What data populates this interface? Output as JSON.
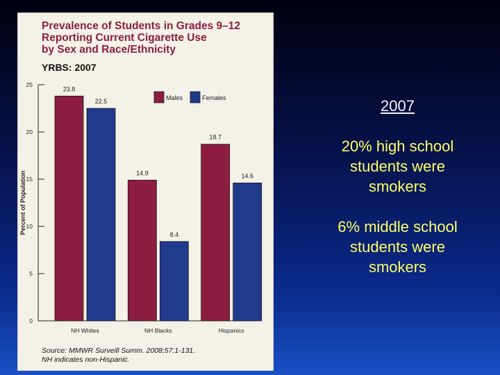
{
  "chart_data": {
    "type": "bar",
    "title_lines": [
      "Prevalence of Students in Grades 9–12",
      "Reporting Current Cigarette Use",
      "by Sex and Race/Ethnicity"
    ],
    "subtitle": "YRBS: 2007",
    "categories": [
      "NH Whites",
      "NH Blacks",
      "Hispanics"
    ],
    "series": [
      {
        "name": "Males",
        "values": [
          23.8,
          14.9,
          18.7
        ],
        "value_labels": [
          "23.8",
          "14.9",
          "18.7"
        ],
        "color": "#8b1e40"
      },
      {
        "name": "Females",
        "values": [
          22.5,
          8.4,
          14.6
        ],
        "value_labels": [
          "22.5",
          "8.4",
          "14.6"
        ],
        "color": "#203a8c"
      }
    ],
    "ylabel": "Percent of Population",
    "ylim": [
      0,
      25
    ],
    "yticks": [
      "0",
      "5",
      "10",
      "15",
      "20",
      "25"
    ],
    "grid": false,
    "legend_position": "top-right",
    "source_lines": [
      "Source: MMWR Surveill Summ. 2008;57:1-131.",
      "NH indicates non-Hispanic."
    ]
  },
  "side_text": {
    "year": "2007",
    "statements": [
      [
        "20% high school",
        "students were",
        "smokers"
      ],
      [
        "6% middle school",
        "students were",
        "smokers"
      ]
    ]
  }
}
